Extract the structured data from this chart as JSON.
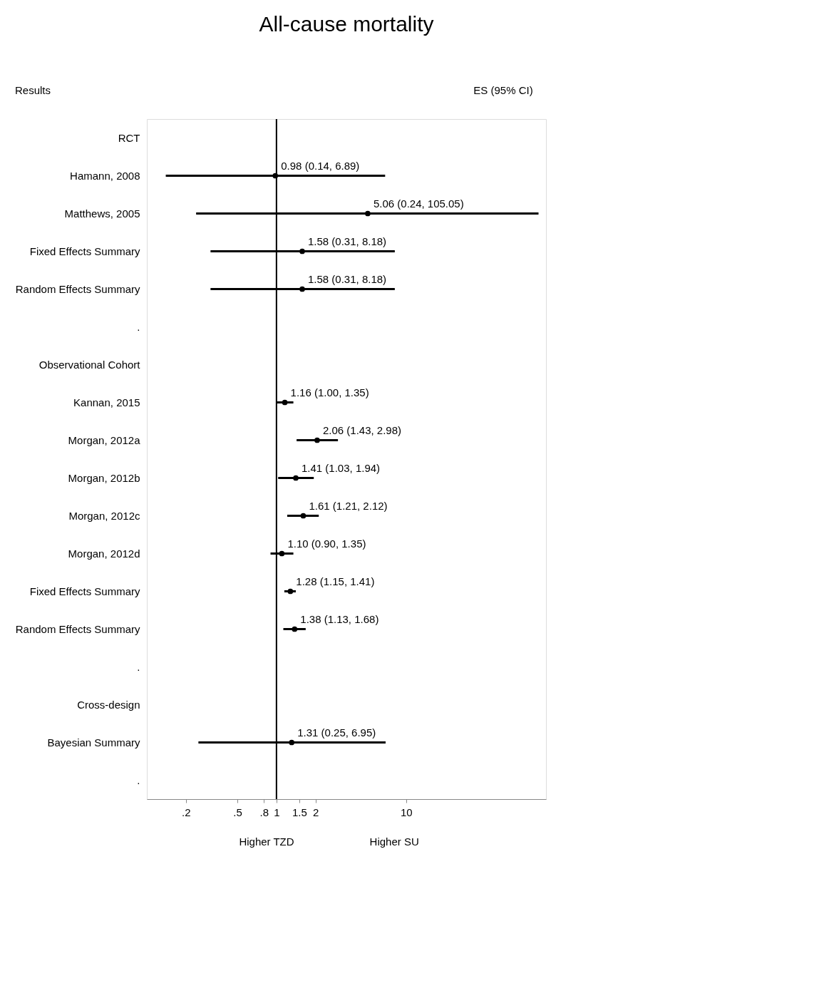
{
  "chart_data": {
    "type": "scatter",
    "orientation": "horizontal",
    "title": "All-cause mortality",
    "categories": [
      "RCT",
      "Hamann, 2008",
      "Matthews, 2005",
      "Fixed Effects Summary",
      "Random Effects Summary",
      ".",
      "Observational Cohort",
      "Kannan, 2015",
      "Morgan, 2012a",
      "Morgan, 2012b",
      "Morgan, 2012c",
      "Morgan, 2012d",
      "Fixed Effects Summary",
      "Random Effects Summary",
      ".",
      "Cross-design",
      "Bayesian Summary",
      "."
    ],
    "values": [
      null,
      0.98,
      5.06,
      1.58,
      1.58,
      null,
      null,
      1.16,
      2.06,
      1.41,
      1.61,
      1.1,
      1.28,
      1.38,
      null,
      null,
      1.31,
      null
    ],
    "errors": [
      null,
      [
        0.14,
        6.89
      ],
      [
        0.24,
        105.05
      ],
      [
        0.31,
        8.18
      ],
      [
        0.31,
        8.18
      ],
      null,
      null,
      [
        1.0,
        1.35
      ],
      [
        1.43,
        2.98
      ],
      [
        1.03,
        1.94
      ],
      [
        1.21,
        2.12
      ],
      [
        0.9,
        1.35
      ],
      [
        1.15,
        1.41
      ],
      [
        1.13,
        1.68
      ],
      null,
      null,
      [
        0.25,
        6.95
      ],
      null
    ],
    "value_labels": [
      null,
      "0.98 (0.14, 6.89)",
      "5.06 (0.24, 105.05)",
      "1.58 (0.31, 8.18)",
      "1.58 (0.31, 8.18)",
      null,
      null,
      "1.16 (1.00, 1.35)",
      "2.06 (1.43, 2.98)",
      "1.41 (1.03, 1.94)",
      "1.61 (1.21, 2.12)",
      "1.10 (0.90, 1.35)",
      "1.28 (1.15, 1.41)",
      "1.38 (1.13, 1.68)",
      null,
      null,
      "1.31 (0.25, 6.95)",
      null
    ],
    "log": "x",
    "xlim": [
      0.1,
      120
    ],
    "xticks": [
      {
        "value": 0.2,
        "label": ".2"
      },
      {
        "value": 0.5,
        "label": ".5"
      },
      {
        "value": 0.8,
        "label": ".8"
      },
      1,
      1.5,
      2,
      10
    ],
    "ref_lines": [
      {
        "axis": "x",
        "value": 1,
        "color": "#000000"
      }
    ],
    "color": "#000000",
    "marker": "circle",
    "grid": false,
    "annotations": [
      "Results",
      "ES (95% CI)",
      "Higher TZD",
      "Higher SU"
    ]
  }
}
